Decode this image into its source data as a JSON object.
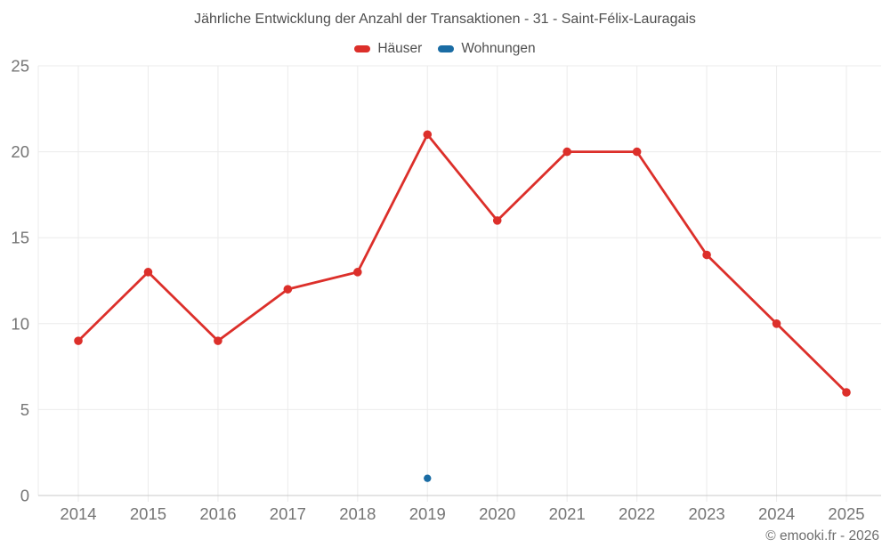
{
  "colors": {
    "haeuser": "#dc2f2a",
    "wohnungen": "#1a6ca4",
    "grid": "#ebebeb",
    "axis": "#c8c8c8",
    "tick_text": "#757575",
    "title_text": "#4f4f4f",
    "footer_text": "#6e6e6e"
  },
  "footer": {
    "text": "© emooki.fr - 2026"
  },
  "chart_data": {
    "type": "line",
    "title": "Jährliche Entwicklung der Anzahl der Transaktionen - 31 - Saint-Félix-Lauragais",
    "xlabel": "",
    "ylabel": "",
    "categories": [
      "2014",
      "2015",
      "2016",
      "2017",
      "2018",
      "2019",
      "2020",
      "2021",
      "2022",
      "2023",
      "2024",
      "2025"
    ],
    "series": [
      {
        "name": "Häuser",
        "color": "#dc2f2a",
        "values": [
          9,
          13,
          9,
          12,
          13,
          21,
          16,
          20,
          20,
          14,
          10,
          6
        ]
      },
      {
        "name": "Wohnungen",
        "color": "#1a6ca4",
        "values": [
          null,
          null,
          null,
          null,
          null,
          1,
          null,
          null,
          null,
          null,
          null,
          null
        ]
      }
    ],
    "ylim": [
      0,
      25
    ],
    "yticks": [
      0,
      5,
      10,
      15,
      20,
      25
    ],
    "grid": true,
    "legend_position": "top"
  }
}
